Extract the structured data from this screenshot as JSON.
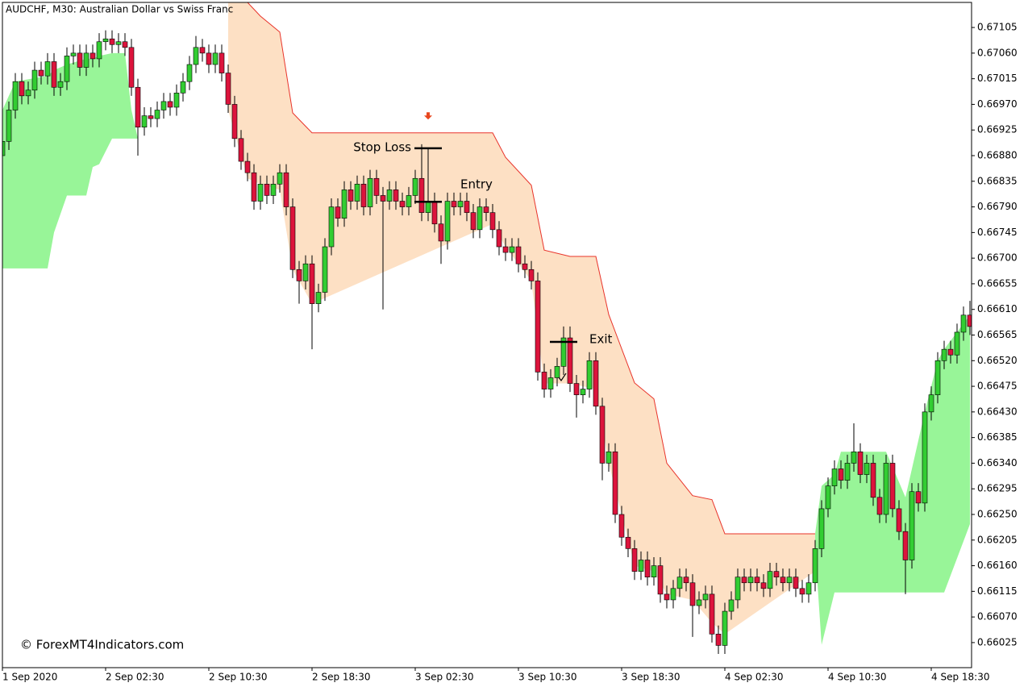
{
  "chart_data": {
    "type": "candlestick",
    "title": "AUDCHF, M30:  Australian Dollar vs Swiss Franc",
    "watermark": "© ForexMT4Indicators.com",
    "up_color": "#32cd32",
    "down_color": "#dc143c",
    "wick_color": "#000000",
    "xlim": [
      0,
      150
    ],
    "ylim": [
      0.65981,
      0.67149
    ],
    "xticks": [
      {
        "value": 0,
        "label": "1 Sep 2020"
      },
      {
        "value": 16,
        "label": "2 Sep 02:30"
      },
      {
        "value": 32,
        "label": "2 Sep 10:30"
      },
      {
        "value": 48,
        "label": "2 Sep 18:30"
      },
      {
        "value": 64,
        "label": "3 Sep 02:30"
      },
      {
        "value": 80,
        "label": "3 Sep 10:30"
      },
      {
        "value": 96,
        "label": "3 Sep 18:30"
      },
      {
        "value": 112,
        "label": "4 Sep 02:30"
      },
      {
        "value": 128,
        "label": "4 Sep 10:30"
      },
      {
        "value": 144,
        "label": "4 Sep 18:30"
      }
    ],
    "yticks": [
      0.67105,
      {
        "value": 0.6706,
        "label": "0.67060"
      },
      0.67015,
      {
        "value": 0.6697,
        "label": "0.66970"
      },
      0.66925,
      {
        "value": 0.6688,
        "label": "0.66880"
      },
      0.66835,
      {
        "value": 0.6679,
        "label": "0.66790"
      },
      0.66745,
      {
        "value": 0.667,
        "label": "0.66700"
      },
      0.66655,
      {
        "value": 0.6661,
        "label": "0.66610"
      },
      0.66565,
      {
        "value": 0.6652,
        "label": "0.66520"
      },
      0.66475,
      {
        "value": 0.6643,
        "label": "0.66430"
      },
      0.66385,
      {
        "value": 0.6634,
        "label": "0.66340"
      },
      0.66295,
      {
        "value": 0.6625,
        "label": "0.66250"
      },
      0.66205,
      {
        "value": 0.6616,
        "label": "0.66160"
      },
      0.66115,
      {
        "value": 0.6607,
        "label": "0.66070"
      },
      0.66025
    ],
    "open": [
      0.6688,
      0.66905,
      0.6696,
      0.6701,
      0.66985,
      0.66995,
      0.6703,
      0.6702,
      0.67045,
      0.67,
      0.6701,
      0.67055,
      0.6706,
      0.67035,
      0.6706,
      0.6705,
      0.6708,
      0.67085,
      0.67075,
      0.6708,
      0.6707,
      0.67,
      0.6693,
      0.6695,
      0.66945,
      0.6696,
      0.66975,
      0.66965,
      0.6699,
      0.6701,
      0.6704,
      0.6707,
      0.6706,
      0.6704,
      0.6706,
      0.67025,
      0.6697,
      0.6691,
      0.6687,
      0.6685,
      0.668,
      0.6683,
      0.6681,
      0.6683,
      0.6685,
      0.6679,
      0.6668,
      0.6666,
      0.6669,
      0.6662,
      0.6664,
      0.6672,
      0.6679,
      0.6677,
      0.6682,
      0.668,
      0.6683,
      0.6679,
      0.6684,
      0.6681,
      0.668,
      0.6682,
      0.668,
      0.6679,
      0.6681,
      0.6684,
      0.6678,
      0.668,
      0.6676,
      0.6673,
      0.668,
      0.6679,
      0.668,
      0.6678,
      0.6675,
      0.6679,
      0.6678,
      0.6675,
      0.6672,
      0.6671,
      0.6672,
      0.6669,
      0.6668,
      0.6666,
      0.665,
      0.6647,
      0.6649,
      0.6651,
      0.6656,
      0.6648,
      0.6646,
      0.6647,
      0.6652,
      0.6644,
      0.6634,
      0.6636,
      0.6625,
      0.6621,
      0.6619,
      0.6615,
      0.6617,
      0.6614,
      0.6616,
      0.6611,
      0.661,
      0.6612,
      0.6614,
      0.6613,
      0.6609,
      0.661,
      0.6611,
      0.6604,
      0.6602,
      0.6608,
      0.661,
      0.6614,
      0.6613,
      0.6614,
      0.6613,
      0.6612,
      0.6615,
      0.6614,
      0.6613,
      0.6614,
      0.6612,
      0.6611,
      0.6613,
      0.6619,
      0.6626,
      0.663,
      0.6633,
      0.6631,
      0.6634,
      0.6636,
      0.6632,
      0.6634,
      0.6628,
      0.6625,
      0.6634,
      0.6626,
      0.6622,
      0.6617,
      0.6629,
      0.6627,
      0.6643,
      0.6646,
      0.6652,
      0.6654,
      0.6653,
      0.6657,
      0.666
    ],
    "high": [
      0.6692,
      0.66975,
      0.67025,
      0.67025,
      0.6701,
      0.67045,
      0.67045,
      0.6706,
      0.6706,
      0.67025,
      0.6707,
      0.67075,
      0.67075,
      0.67075,
      0.67075,
      0.67095,
      0.671,
      0.671,
      0.67095,
      0.67095,
      0.67085,
      0.67015,
      0.66965,
      0.66965,
      0.66975,
      0.6699,
      0.6699,
      0.67005,
      0.67025,
      0.67055,
      0.6709,
      0.67085,
      0.67075,
      0.67075,
      0.67075,
      0.6704,
      0.66985,
      0.66925,
      0.66885,
      0.66865,
      0.66845,
      0.66845,
      0.66845,
      0.66865,
      0.66865,
      0.66805,
      0.66695,
      0.66705,
      0.66705,
      0.66655,
      0.66735,
      0.66805,
      0.66805,
      0.66835,
      0.66835,
      0.66845,
      0.66845,
      0.66855,
      0.66855,
      0.66825,
      0.66835,
      0.66835,
      0.66815,
      0.66825,
      0.66855,
      0.669,
      0.66815,
      0.66815,
      0.66775,
      0.66815,
      0.66815,
      0.66815,
      0.66815,
      0.66795,
      0.66805,
      0.66805,
      0.66795,
      0.66765,
      0.66735,
      0.66735,
      0.66735,
      0.66705,
      0.66695,
      0.66675,
      0.66515,
      0.66505,
      0.66525,
      0.6658,
      0.6658,
      0.66495,
      0.66485,
      0.66535,
      0.66535,
      0.66455,
      0.66375,
      0.66375,
      0.66265,
      0.66225,
      0.66205,
      0.66185,
      0.66185,
      0.66175,
      0.66175,
      0.66125,
      0.66135,
      0.66155,
      0.66155,
      0.66145,
      0.66115,
      0.66125,
      0.66125,
      0.66055,
      0.66095,
      0.66115,
      0.66155,
      0.66155,
      0.66155,
      0.66155,
      0.66145,
      0.66165,
      0.66165,
      0.66155,
      0.66155,
      0.66155,
      0.66135,
      0.66145,
      0.66205,
      0.66275,
      0.66315,
      0.66345,
      0.66345,
      0.66355,
      0.6641,
      0.66375,
      0.66355,
      0.66355,
      0.66295,
      0.66355,
      0.66355,
      0.66275,
      0.66235,
      0.66305,
      0.66305,
      0.66445,
      0.66475,
      0.66535,
      0.66555,
      0.66555,
      0.66585,
      0.66615,
      0.66625
    ],
    "low": [
      0.66865,
      0.6689,
      0.66945,
      0.6697,
      0.6697,
      0.6698,
      0.67005,
      0.67005,
      0.66985,
      0.66985,
      0.66995,
      0.6704,
      0.6702,
      0.6702,
      0.67035,
      0.67035,
      0.67065,
      0.6706,
      0.6706,
      0.67055,
      0.66985,
      0.6688,
      0.66915,
      0.6693,
      0.6693,
      0.66945,
      0.6695,
      0.6695,
      0.66975,
      0.66995,
      0.67025,
      0.67045,
      0.67025,
      0.67025,
      0.6701,
      0.66955,
      0.66895,
      0.66855,
      0.66835,
      0.66785,
      0.66785,
      0.66795,
      0.66795,
      0.66815,
      0.66775,
      0.66665,
      0.6662,
      0.66645,
      0.6654,
      0.66605,
      0.66625,
      0.66705,
      0.66755,
      0.66755,
      0.66785,
      0.66785,
      0.66775,
      0.66775,
      0.66795,
      0.6661,
      0.66785,
      0.66785,
      0.66775,
      0.66775,
      0.66795,
      0.66765,
      0.66765,
      0.66745,
      0.6669,
      0.66715,
      0.66775,
      0.66775,
      0.66765,
      0.66735,
      0.66735,
      0.66765,
      0.66735,
      0.66705,
      0.66695,
      0.66695,
      0.66675,
      0.66665,
      0.66645,
      0.66485,
      0.66455,
      0.66455,
      0.66475,
      0.66495,
      0.66465,
      0.6642,
      0.66445,
      0.66455,
      0.66425,
      0.6631,
      0.66325,
      0.66235,
      0.66195,
      0.66175,
      0.66135,
      0.66135,
      0.66125,
      0.66125,
      0.66095,
      0.66085,
      0.66085,
      0.66105,
      0.66115,
      0.66035,
      0.66075,
      0.66085,
      0.66025,
      0.66005,
      0.66005,
      0.66065,
      0.66085,
      0.66115,
      0.66115,
      0.66115,
      0.66105,
      0.66105,
      0.66125,
      0.66115,
      0.66115,
      0.66105,
      0.66095,
      0.66095,
      0.66115,
      0.66175,
      0.66245,
      0.66285,
      0.66295,
      0.66295,
      0.66325,
      0.66305,
      0.66305,
      0.66265,
      0.66235,
      0.66235,
      0.66245,
      0.66205,
      0.6611,
      0.66155,
      0.66255,
      0.66255,
      0.66415,
      0.66445,
      0.66505,
      0.66515,
      0.66515,
      0.66555,
      0.66565
    ],
    "close": [
      0.66905,
      0.6696,
      0.6701,
      0.66985,
      0.66995,
      0.6703,
      0.6702,
      0.67045,
      0.67,
      0.6701,
      0.67055,
      0.6706,
      0.67035,
      0.6706,
      0.6705,
      0.6708,
      0.67085,
      0.67075,
      0.6708,
      0.6707,
      0.67,
      0.6693,
      0.6695,
      0.66945,
      0.6696,
      0.66975,
      0.66965,
      0.6699,
      0.6701,
      0.6704,
      0.6707,
      0.6706,
      0.6704,
      0.6706,
      0.67025,
      0.6697,
      0.6691,
      0.6687,
      0.6685,
      0.668,
      0.6683,
      0.6681,
      0.6683,
      0.6685,
      0.6679,
      0.6668,
      0.6666,
      0.6669,
      0.6662,
      0.6664,
      0.6672,
      0.6679,
      0.6677,
      0.6682,
      0.668,
      0.6683,
      0.6679,
      0.6684,
      0.6681,
      0.668,
      0.6682,
      0.668,
      0.6679,
      0.6681,
      0.6684,
      0.6678,
      0.668,
      0.6676,
      0.6673,
      0.668,
      0.6679,
      0.668,
      0.6678,
      0.6675,
      0.6679,
      0.6678,
      0.6675,
      0.6672,
      0.6671,
      0.6672,
      0.6669,
      0.6668,
      0.6666,
      0.665,
      0.6647,
      0.6649,
      0.6651,
      0.6656,
      0.6648,
      0.6646,
      0.6647,
      0.6652,
      0.6644,
      0.6634,
      0.6636,
      0.6625,
      0.6621,
      0.6619,
      0.6615,
      0.6617,
      0.6614,
      0.6616,
      0.6611,
      0.661,
      0.6612,
      0.6614,
      0.6613,
      0.6609,
      0.661,
      0.6611,
      0.6604,
      0.6602,
      0.6608,
      0.661,
      0.6614,
      0.6613,
      0.6614,
      0.6613,
      0.6612,
      0.6615,
      0.6614,
      0.6613,
      0.6614,
      0.6612,
      0.6611,
      0.6613,
      0.6619,
      0.6626,
      0.663,
      0.6633,
      0.6631,
      0.6634,
      0.6636,
      0.6632,
      0.6634,
      0.6628,
      0.6625,
      0.6634,
      0.6626,
      0.6622,
      0.6617,
      0.6629,
      0.6627,
      0.6643,
      0.6646,
      0.6652,
      0.6654,
      0.6653,
      0.6657,
      0.666,
      0.6658
    ],
    "zones": [
      {
        "color": "#98f598",
        "x": [
          0,
          2,
          7,
          8,
          10,
          13,
          14,
          15,
          17,
          19,
          20,
          21,
          35
        ],
        "upper": [
          0.6696,
          0.6701,
          0.6702,
          0.6703,
          0.6704,
          0.6705,
          0.6705,
          0.67055,
          0.6706,
          0.6706,
          0.6696,
          0.6691,
          0.6691
        ],
        "lower": [
          0.66682,
          0.66682,
          0.66682,
          0.66745,
          0.6681,
          0.6681,
          0.6686,
          0.66865,
          0.6691,
          0.6691,
          0.6691,
          0.6691,
          0.6691
        ]
      },
      {
        "color": "#fde0c4",
        "line_color": "#e8332a",
        "x": [
          35,
          38,
          40,
          43,
          45,
          48,
          76,
          78,
          82,
          84,
          88,
          92,
          94,
          98,
          101,
          103,
          107,
          110,
          112,
          126
        ],
        "upper": [
          0.67149,
          0.67149,
          0.67125,
          0.67097,
          0.66955,
          0.6692,
          0.6692,
          0.66877,
          0.66828,
          0.66714,
          0.66703,
          0.66703,
          0.66601,
          0.66481,
          0.66453,
          0.6634,
          0.66283,
          0.66276,
          0.66216,
          0.66216
        ],
        "lower": [
          0.6696,
          0.6684,
          0.6683,
          0.6682,
          0.6668,
          0.6662,
          0.6676,
          0.6672,
          0.6666,
          0.6648,
          0.6648,
          0.6647,
          0.6634,
          0.6616,
          0.6615,
          0.6611,
          0.661,
          0.6606,
          0.6604,
          0.6615
        ]
      },
      {
        "color": "#98f598",
        "x": [
          126,
          127,
          129,
          130,
          137,
          140,
          143,
          145,
          146,
          150
        ],
        "upper": [
          0.66216,
          0.663,
          0.6632,
          0.6636,
          0.6636,
          0.6628,
          0.6643,
          0.6652,
          0.6654,
          0.666
        ],
        "lower": [
          0.6619,
          0.66021,
          0.66113,
          0.66113,
          0.66113,
          0.66113,
          0.66113,
          0.66113,
          0.66113,
          0.66233
        ]
      }
    ],
    "annotations": [
      {
        "text": "Stop Loss",
        "x": 66,
        "price": 0.66893
      },
      {
        "text": "Entry",
        "x": 66,
        "price": 0.66799
      },
      {
        "text": "Exit",
        "x": 87,
        "price": 0.66553
      }
    ],
    "signal_arrow": {
      "x": 66,
      "price": 0.66949,
      "color": "#e8471e"
    }
  }
}
